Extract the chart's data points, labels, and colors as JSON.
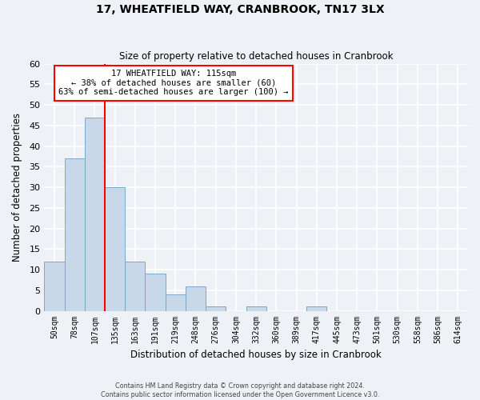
{
  "title": "17, WHEATFIELD WAY, CRANBROOK, TN17 3LX",
  "subtitle": "Size of property relative to detached houses in Cranbrook",
  "xlabel": "Distribution of detached houses by size in Cranbrook",
  "ylabel": "Number of detached properties",
  "footer_line1": "Contains HM Land Registry data © Crown copyright and database right 2024.",
  "footer_line2": "Contains public sector information licensed under the Open Government Licence v3.0.",
  "bin_labels": [
    "50sqm",
    "78sqm",
    "107sqm",
    "135sqm",
    "163sqm",
    "191sqm",
    "219sqm",
    "248sqm",
    "276sqm",
    "304sqm",
    "332sqm",
    "360sqm",
    "389sqm",
    "417sqm",
    "445sqm",
    "473sqm",
    "501sqm",
    "530sqm",
    "558sqm",
    "586sqm",
    "614sqm"
  ],
  "bar_values": [
    12,
    37,
    47,
    30,
    12,
    9,
    4,
    6,
    1,
    0,
    1,
    0,
    0,
    1,
    0,
    0,
    0,
    0,
    0,
    0,
    0
  ],
  "bar_color": "#c8d8e8",
  "bar_edge_color": "#7aaac8",
  "vline_x_index": 2,
  "vline_color": "red",
  "ylim": [
    0,
    60
  ],
  "yticks": [
    0,
    5,
    10,
    15,
    20,
    25,
    30,
    35,
    40,
    45,
    50,
    55,
    60
  ],
  "annotation_title": "17 WHEATFIELD WAY: 115sqm",
  "annotation_line1": "← 38% of detached houses are smaller (60)",
  "annotation_line2": "63% of semi-detached houses are larger (100) →",
  "annotation_box_color": "white",
  "annotation_box_edgecolor": "red",
  "bg_color": "#eef2f7",
  "grid_color": "white"
}
